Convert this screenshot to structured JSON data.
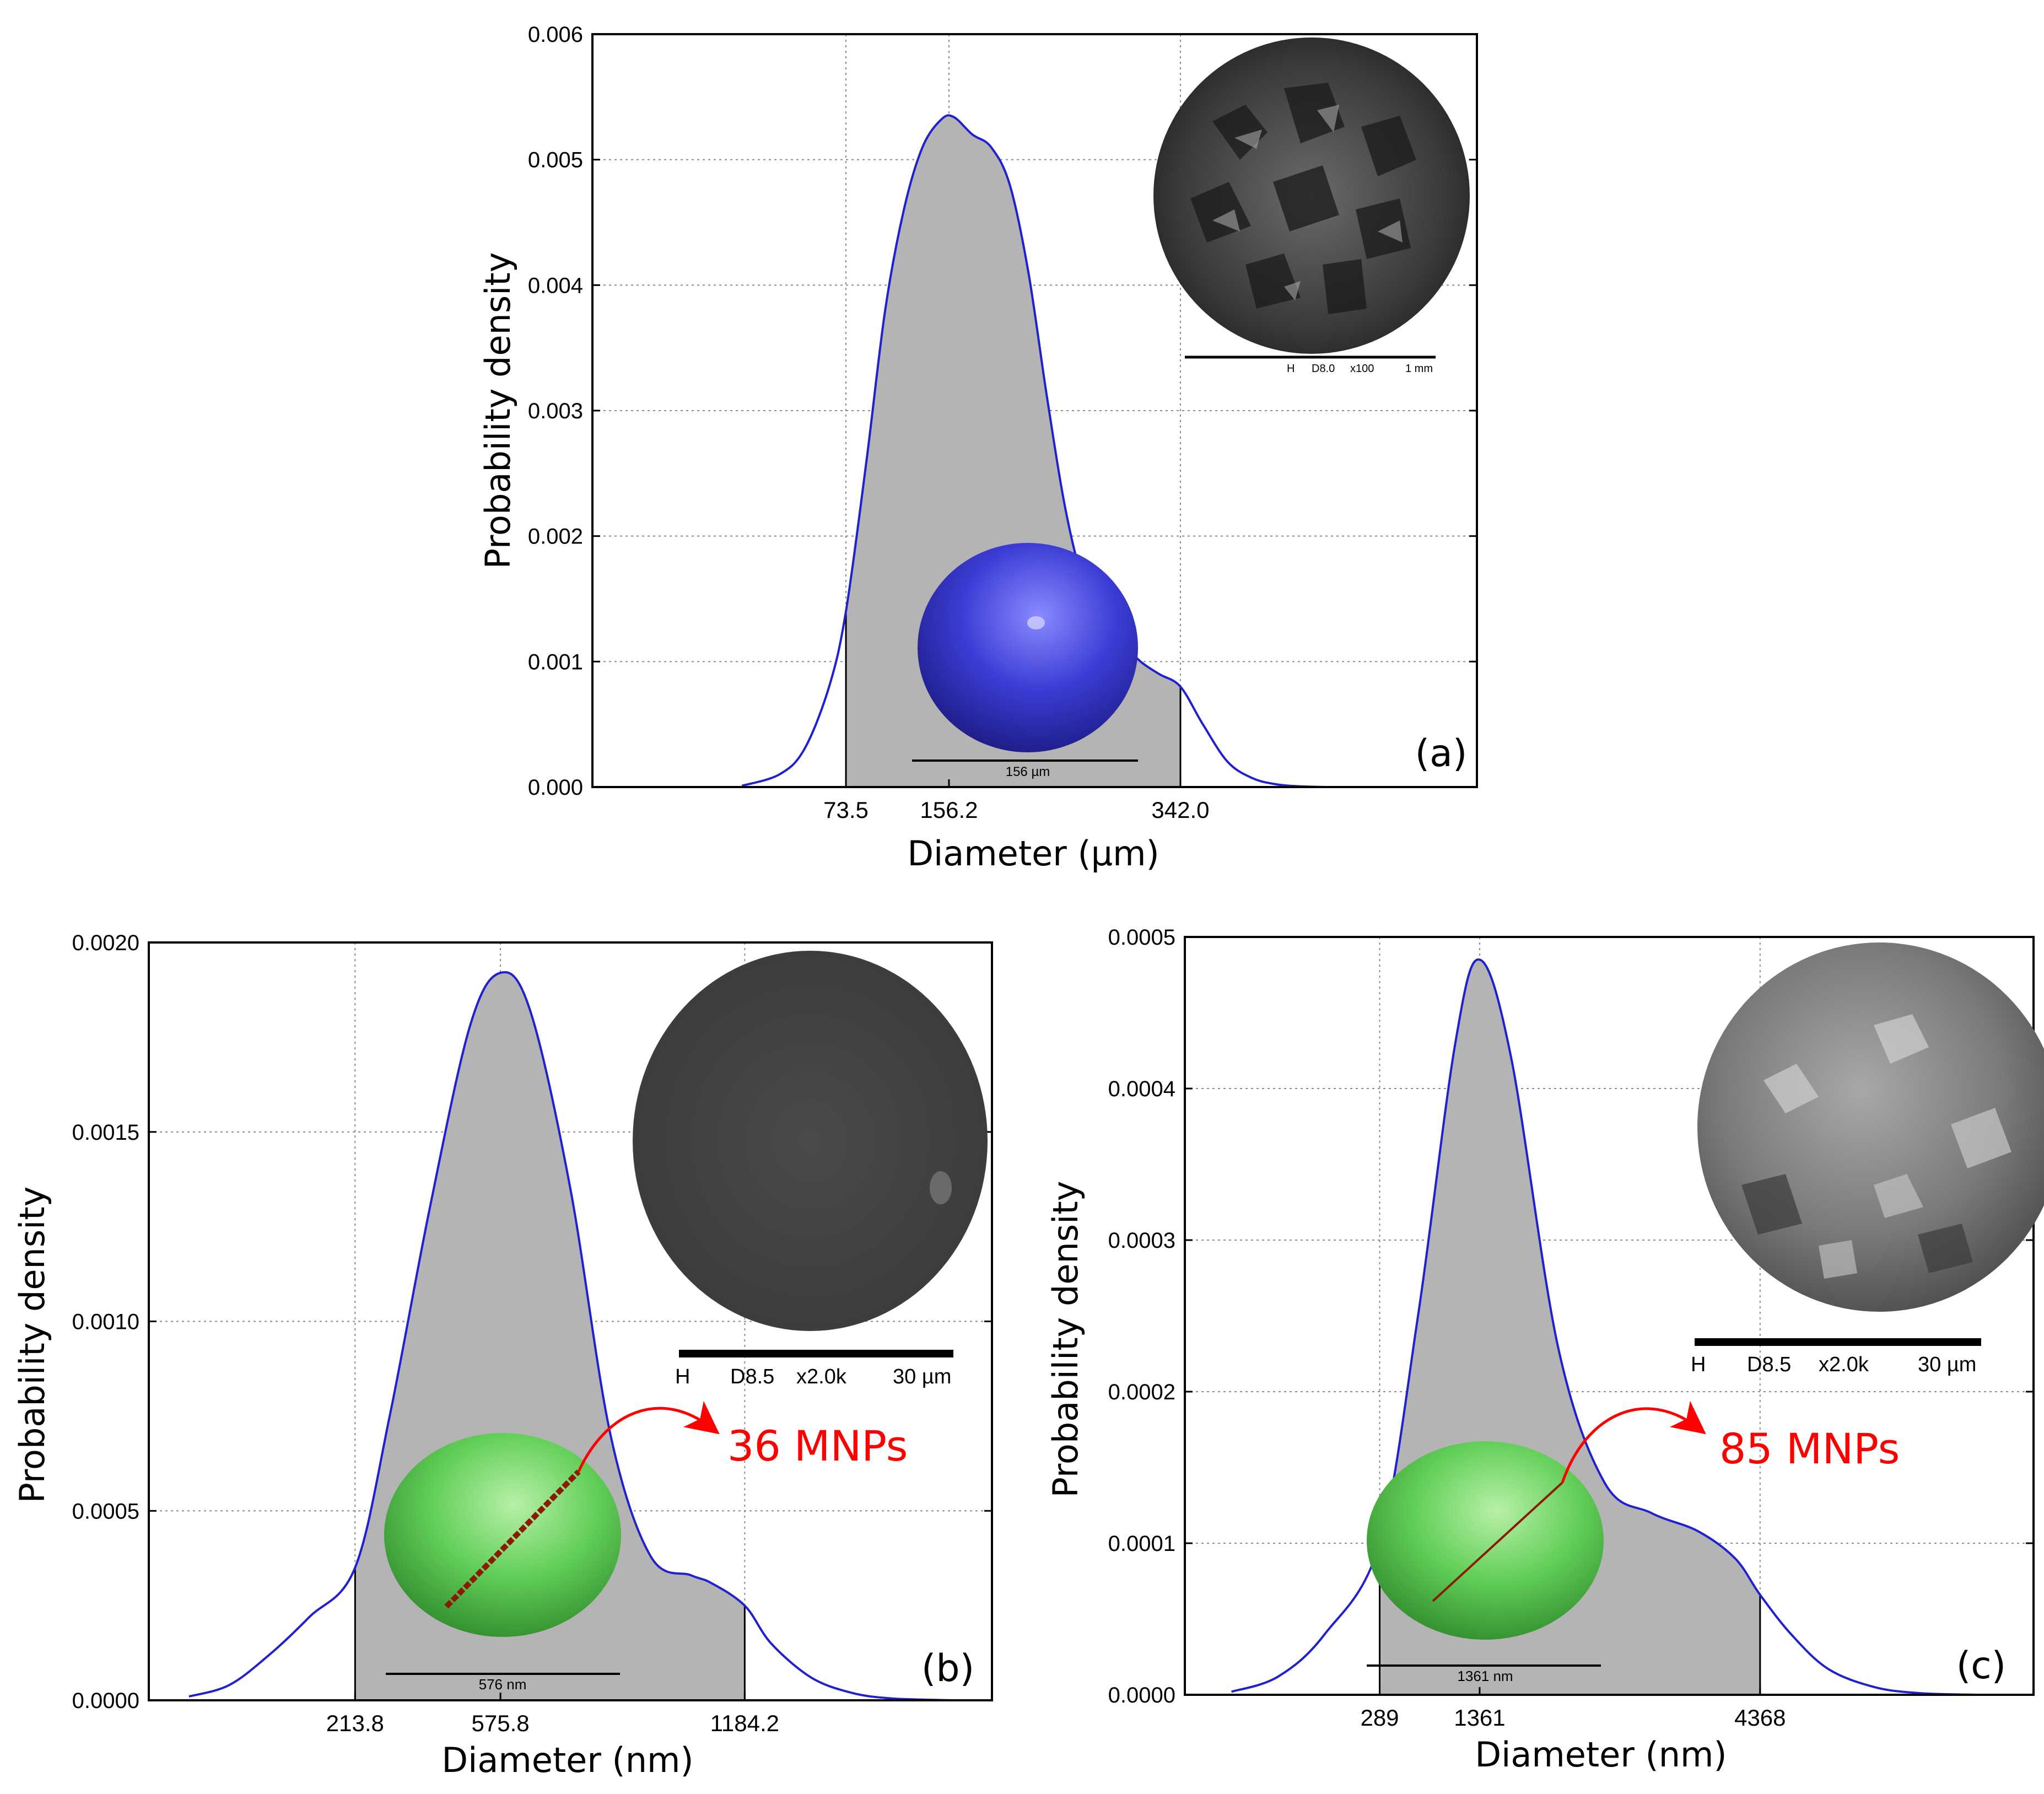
{
  "panels": [
    {
      "panel_label": "(a)",
      "chart_data": {
        "type": "area",
        "xlabel": "Diameter (µm)",
        "ylabel": "Probability density",
        "xlim": [
          -130,
          580
        ],
        "ylim": [
          0,
          0.006
        ],
        "y_ticks": [
          "0.000",
          "0.001",
          "0.002",
          "0.003",
          "0.004",
          "0.005",
          "0.006"
        ],
        "x_tick_labels": [
          "73.5",
          "156.2",
          "342.0"
        ],
        "x_tick_values": [
          73.5,
          156.2,
          342.0
        ],
        "shaded_range": [
          73.5,
          342.0
        ],
        "x": [
          -10,
          20,
          40,
          60,
          73.5,
          90,
          105,
          120,
          135,
          150,
          160,
          175,
          190,
          205,
          220,
          235,
          250,
          265,
          280,
          295,
          310,
          325,
          342,
          360,
          380,
          400,
          420,
          440,
          460
        ],
        "y": [
          1e-05,
          0.0001,
          0.0003,
          0.0008,
          0.0014,
          0.0026,
          0.0038,
          0.0046,
          0.0051,
          0.00532,
          0.00534,
          0.0052,
          0.0051,
          0.0048,
          0.0041,
          0.0031,
          0.0022,
          0.0016,
          0.0013,
          0.00115,
          0.001,
          0.0009,
          0.0008,
          0.0005,
          0.0002,
          7e-05,
          2e-05,
          5e-06,
          0.0
        ],
        "grid": true
      },
      "inset_micrograph": {
        "scale_labels": [
          "H",
          "D8.0",
          "x100",
          "1 mm"
        ]
      },
      "particle_scale_label": "156 µm"
    },
    {
      "panel_label": "(b)",
      "chart_data": {
        "type": "area",
        "xlabel": "Diameter (nm)",
        "ylabel": "Probability density",
        "xlim": [
          -300,
          1800
        ],
        "ylim": [
          0,
          0.002
        ],
        "y_ticks": [
          "0.0000",
          "0.0005",
          "0.0010",
          "0.0015",
          "0.0020"
        ],
        "x_tick_labels": [
          "213.8",
          "575.8",
          "1184.2"
        ],
        "x_tick_values": [
          213.8,
          575.8,
          1184.2
        ],
        "shaded_range": [
          213.8,
          1184.2
        ],
        "x": [
          -200,
          -100,
          0,
          100,
          213.8,
          300,
          400,
          500,
          575.8,
          650,
          750,
          850,
          950,
          1050,
          1100,
          1184.2,
          1250,
          1350,
          1450,
          1550,
          1700
        ],
        "y": [
          1e-05,
          4e-05,
          0.00012,
          0.00022,
          0.00035,
          0.00075,
          0.0013,
          0.00178,
          0.00192,
          0.00182,
          0.00135,
          0.0007,
          0.00038,
          0.00033,
          0.00031,
          0.00025,
          0.00015,
          6e-05,
          2e-05,
          5e-06,
          0.0
        ],
        "grid": true
      },
      "inset_micrograph": {
        "scale_labels": [
          "H",
          "D8.5",
          "x2.0k",
          "30 µm"
        ]
      },
      "particle_scale_label": "576 nm",
      "callout_label": "36 MNPs"
    },
    {
      "panel_label": "(c)",
      "chart_data": {
        "type": "area",
        "xlabel": "Diameter (nm)",
        "ylabel": "Probability density",
        "xlim": [
          -1800,
          7300
        ],
        "ylim": [
          0,
          0.0005
        ],
        "y_ticks": [
          "0.0000",
          "0.0001",
          "0.0002",
          "0.0003",
          "0.0004",
          "0.0005"
        ],
        "x_tick_labels": [
          "289",
          "1361",
          "4368"
        ],
        "x_tick_values": [
          289,
          1361,
          4368
        ],
        "shaded_range": [
          289,
          4368
        ],
        "x": [
          -1300,
          -800,
          -300,
          289,
          700,
          1100,
          1361,
          1700,
          2200,
          2700,
          3200,
          3700,
          4100,
          4368,
          4700,
          5100,
          5600,
          6100,
          6700
        ],
        "y": [
          2e-06,
          1.2e-05,
          4e-05,
          0.0001,
          0.00025,
          0.00043,
          0.000485,
          0.00042,
          0.00023,
          0.00014,
          0.00012,
          0.000108,
          9e-05,
          6.6e-05,
          4e-05,
          1.7e-05,
          5e-06,
          1e-06,
          0.0
        ],
        "grid": true
      },
      "inset_micrograph": {
        "scale_labels": [
          "H",
          "D8.5",
          "x2.0k",
          "30 µm"
        ]
      },
      "particle_scale_label": "1361 nm",
      "callout_label": "85 MNPs"
    }
  ],
  "colors": {
    "curve": "#2020d0",
    "fill": "#b4b4b4",
    "grid": "#8c8c8c",
    "callout": "#ff0000",
    "sphere_a": "#3a3ad0",
    "sphere_bc": "#5fcf55",
    "mnp_line": "#8a1a00"
  }
}
